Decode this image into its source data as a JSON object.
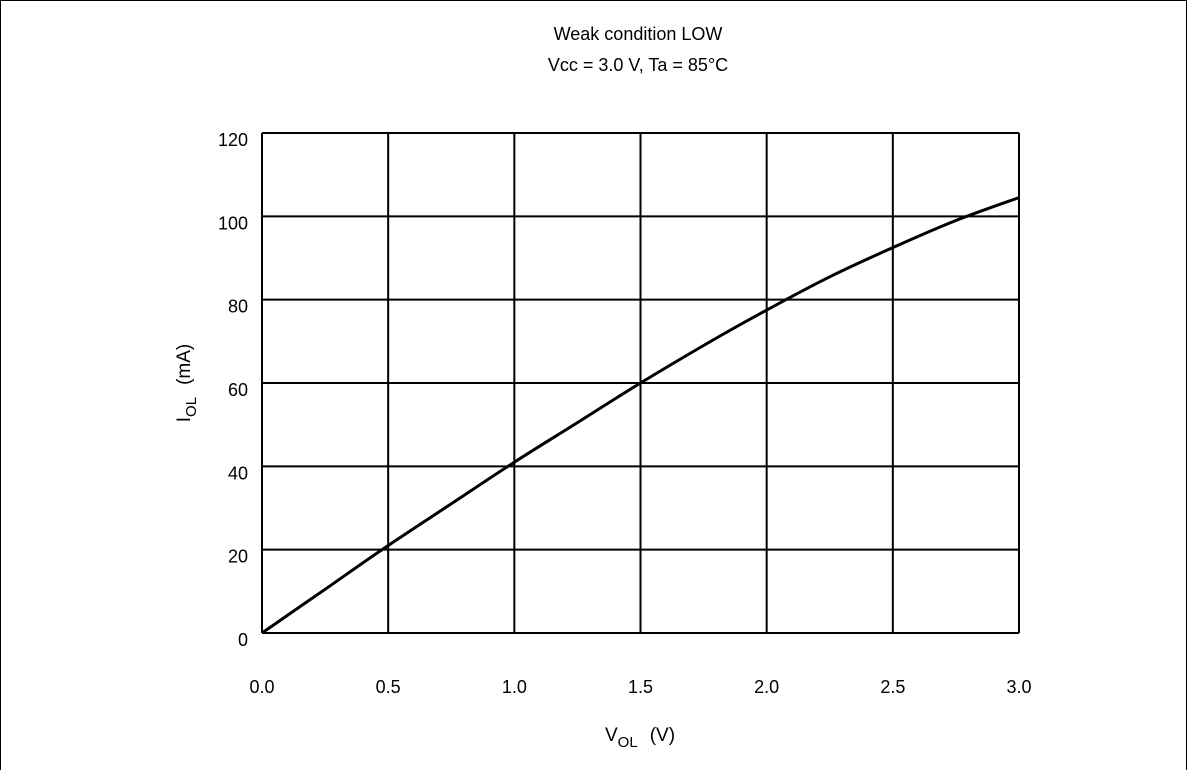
{
  "chart_data": {
    "type": "line",
    "title": "Weak condition LOW",
    "subtitle": "Vcc = 3.0 V, Ta = 85°C",
    "xlabel": {
      "main": "V",
      "sub": "OL",
      "unit": "(V)"
    },
    "ylabel": {
      "main": "I",
      "sub": "OL",
      "unit": "(mA)"
    },
    "xlim": [
      0.0,
      3.0
    ],
    "ylim": [
      0,
      120
    ],
    "x_ticks": [
      "0.0",
      "0.5",
      "1.0",
      "1.5",
      "2.0",
      "2.5",
      "3.0"
    ],
    "y_ticks": [
      "0",
      "20",
      "40",
      "60",
      "80",
      "100",
      "120"
    ],
    "grid": true,
    "series": [
      {
        "x": [
          0.0,
          0.25,
          0.5,
          0.75,
          1.0,
          1.25,
          1.5,
          1.75,
          2.0,
          2.25,
          2.5,
          2.75,
          3.0
        ],
        "y": [
          0,
          10.5,
          21,
          31,
          41,
          50.5,
          60,
          69,
          77.5,
          85.5,
          92.5,
          99,
          104.5
        ]
      }
    ],
    "line_color": "#000000"
  }
}
